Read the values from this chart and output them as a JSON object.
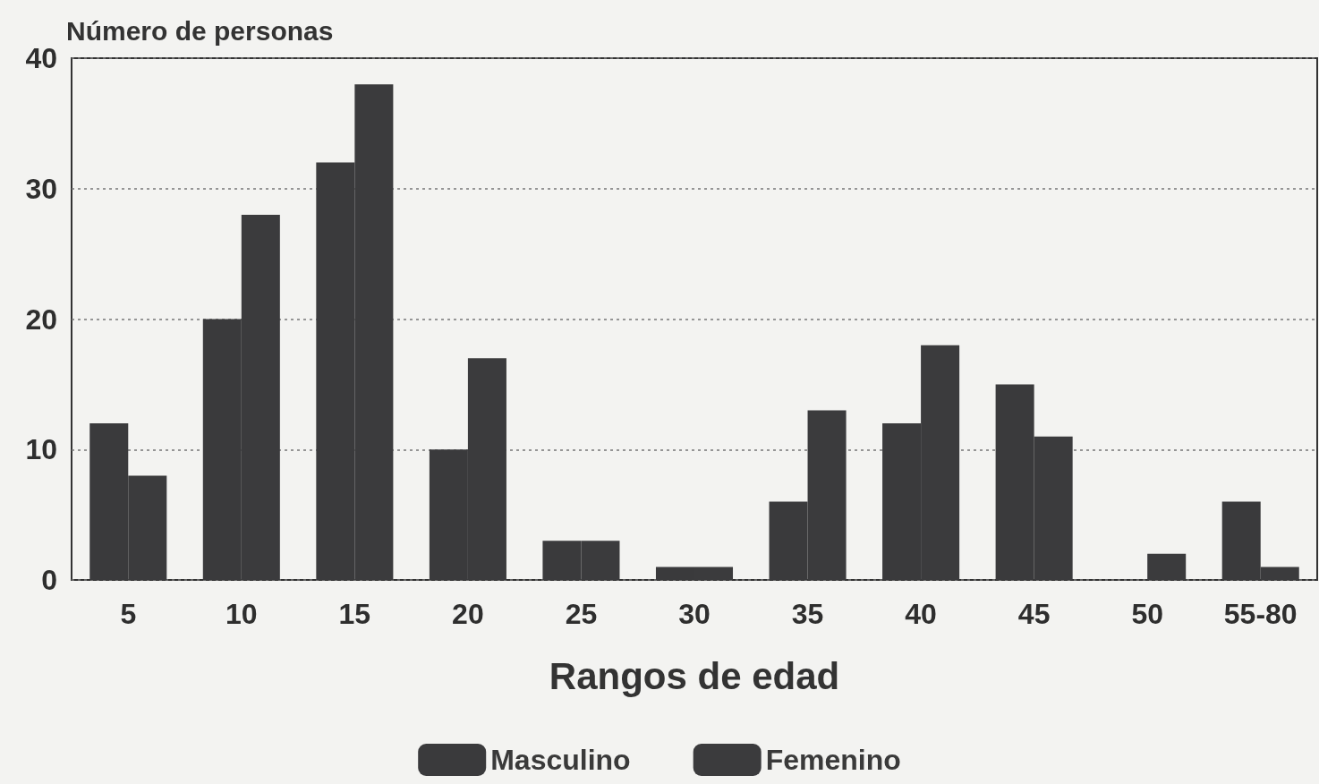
{
  "chart_data": {
    "type": "bar",
    "ylabel": "Número de personas",
    "xlabel": "Rangos de edad",
    "categories": [
      "5",
      "10",
      "15",
      "20",
      "25",
      "30",
      "35",
      "40",
      "45",
      "50",
      "55-80"
    ],
    "series": [
      {
        "name": "Masculino",
        "color": "#3a3a3c",
        "values": [
          12,
          20,
          32,
          10,
          3,
          1,
          6,
          12,
          15,
          0,
          6
        ]
      },
      {
        "name": "Femenino",
        "color": "#3b3b3d",
        "values": [
          8,
          28,
          38,
          17,
          3,
          1,
          13,
          18,
          11,
          2,
          1
        ]
      }
    ],
    "ylim": [
      0,
      40
    ],
    "yticks": [
      0,
      10,
      20,
      30,
      40
    ],
    "grid": "y",
    "legend": "bottom"
  }
}
